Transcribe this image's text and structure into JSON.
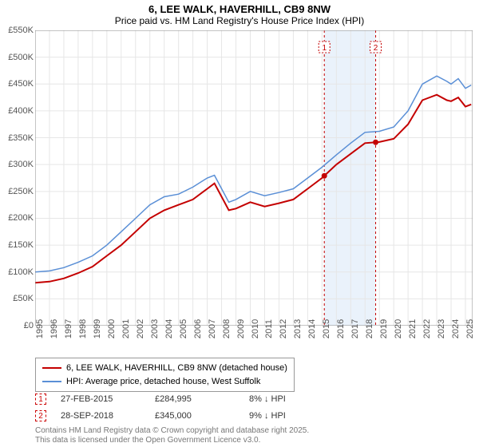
{
  "title": {
    "line1": "6, LEE WALK, HAVERHILL, CB9 8NW",
    "line2": "Price paid vs. HM Land Registry's House Price Index (HPI)"
  },
  "chart": {
    "type": "line",
    "background_color": "#ffffff",
    "grid_color": "#e6e6e6",
    "axis_color": "#888888",
    "xlim": [
      1995,
      2025.5
    ],
    "ylim": [
      0,
      550000
    ],
    "ytick_step": 50000,
    "ytick_labels": [
      "£0",
      "£50K",
      "£100K",
      "£150K",
      "£200K",
      "£250K",
      "£300K",
      "£350K",
      "£400K",
      "£450K",
      "£500K",
      "£550K"
    ],
    "xtick_step": 1,
    "xtick_labels": [
      "1995",
      "1996",
      "1997",
      "1998",
      "1999",
      "2000",
      "2001",
      "2002",
      "2003",
      "2004",
      "2005",
      "2006",
      "2007",
      "2008",
      "2009",
      "2010",
      "2011",
      "2012",
      "2013",
      "2014",
      "2015",
      "2016",
      "2017",
      "2018",
      "2019",
      "2020",
      "2021",
      "2022",
      "2023",
      "2024",
      "2025"
    ],
    "series": {
      "price_paid": {
        "label": "6, LEE WALK, HAVERHILL, CB9 8NW (detached house)",
        "color": "#c40000",
        "width": 2,
        "x": [
          1995,
          1996,
          1997,
          1998,
          1999,
          2000,
          2001,
          2002,
          2003,
          2004,
          2005,
          2006,
          2007,
          2007.5,
          2008,
          2008.5,
          2009,
          2010,
          2011,
          2012,
          2013,
          2014,
          2015,
          2016,
          2017,
          2018,
          2019,
          2020,
          2021,
          2022,
          2023,
          2023.7,
          2024,
          2024.5,
          2025,
          2025.4
        ],
        "y": [
          80000,
          82000,
          88000,
          98000,
          110000,
          130000,
          150000,
          175000,
          200000,
          215000,
          225000,
          235000,
          255000,
          265000,
          240000,
          215000,
          218000,
          230000,
          222000,
          228000,
          235000,
          255000,
          275000,
          300000,
          320000,
          340000,
          342000,
          348000,
          375000,
          420000,
          430000,
          420000,
          418000,
          425000,
          408000,
          412000
        ]
      },
      "hpi": {
        "label": "HPI: Average price, detached house, West Suffolk",
        "color": "#5a8fd6",
        "width": 1.5,
        "x": [
          1995,
          1996,
          1997,
          1998,
          1999,
          2000,
          2001,
          2002,
          2003,
          2004,
          2005,
          2006,
          2007,
          2007.5,
          2008,
          2008.5,
          2009,
          2010,
          2011,
          2012,
          2013,
          2014,
          2015,
          2016,
          2017,
          2018,
          2019,
          2020,
          2021,
          2022,
          2023,
          2023.7,
          2024,
          2024.5,
          2025,
          2025.4
        ],
        "y": [
          100000,
          102000,
          108000,
          118000,
          130000,
          150000,
          175000,
          200000,
          225000,
          240000,
          245000,
          258000,
          275000,
          280000,
          255000,
          230000,
          235000,
          250000,
          242000,
          248000,
          255000,
          275000,
          295000,
          318000,
          340000,
          360000,
          362000,
          370000,
          400000,
          450000,
          465000,
          455000,
          450000,
          460000,
          442000,
          448000
        ]
      }
    },
    "markers": [
      {
        "n": "1",
        "x": 2015.16,
        "date": "27-FEB-2015",
        "price": "£284,995",
        "delta": "8% ↓ HPI",
        "band_end": 2018.74
      },
      {
        "n": "2",
        "x": 2018.74,
        "date": "28-SEP-2018",
        "price": "£345,000",
        "delta": "9% ↓ HPI"
      }
    ],
    "band_color": "#eaf2fb",
    "marker_line_color": "#c40000",
    "marker_dot_color": "#c40000",
    "label_fontsize": 11,
    "title_fontsize": 13
  },
  "legend": {
    "items": [
      {
        "color": "#c40000",
        "label": "6, LEE WALK, HAVERHILL, CB9 8NW (detached house)"
      },
      {
        "color": "#5a8fd6",
        "label": "HPI: Average price, detached house, West Suffolk"
      }
    ]
  },
  "footer": {
    "line1": "Contains HM Land Registry data © Crown copyright and database right 2025.",
    "line2": "This data is licensed under the Open Government Licence v3.0."
  }
}
